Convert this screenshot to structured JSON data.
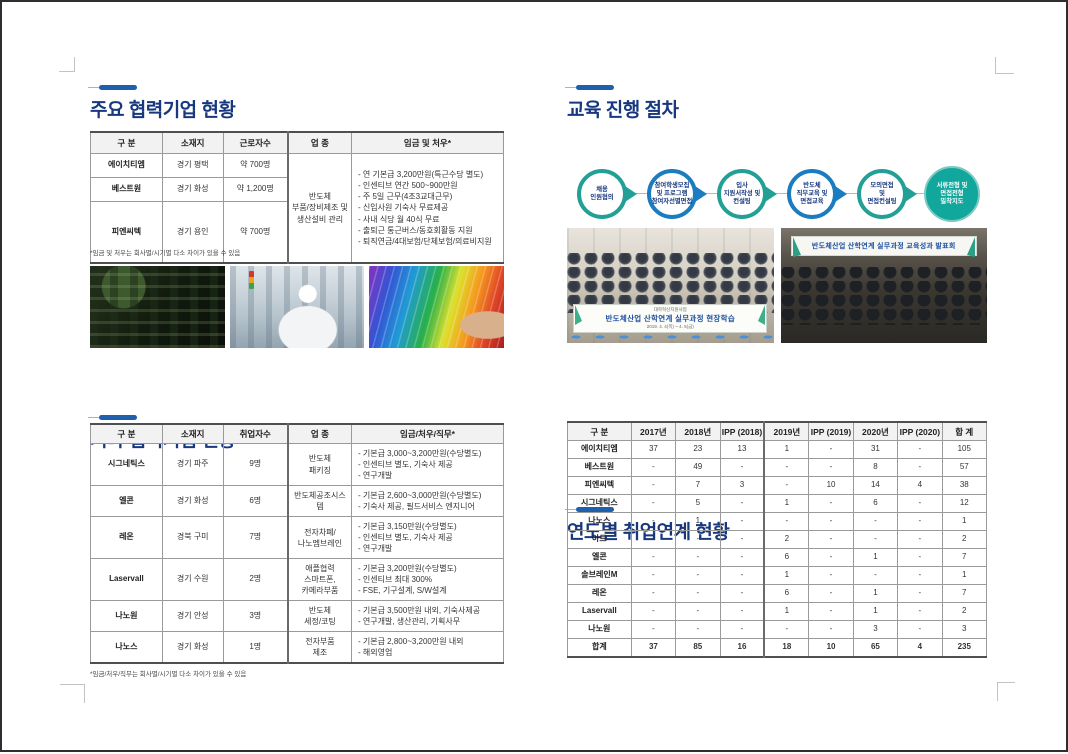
{
  "colors": {
    "title_navy": "#17387f",
    "accent_bar_blue": "#1e5fae",
    "diagram_teal": "#23a096",
    "diagram_blue": "#1b7cc0",
    "diagram_filled_teal": "#12a79d",
    "table_header_bg": "#f2f2f2"
  },
  "left": {
    "major": {
      "title": "주요 협력기업 현황",
      "headers": [
        "구 분",
        "소재지",
        "근로자수",
        "업 종",
        "임금 및 처우*"
      ],
      "rows": [
        {
          "name": "에이치티엠",
          "location": "경기 평택",
          "workers": "약 700명"
        },
        {
          "name": "베스트원",
          "location": "경기 화성",
          "workers": "약 1,200명"
        },
        {
          "name": "피엔씨텍",
          "location": "경기 용인",
          "workers": "약 700명"
        }
      ],
      "industry": [
        "반도체",
        "부품/장비제조 및",
        "생산설비 관리"
      ],
      "benefits": [
        "- 연 기본급 3,200만원(특근수당 별도)",
        "- 인센티브 연간 500~900만원",
        "- 주 5일 근무(4조3교대근무)",
        "- 신입사원 기숙사 무료제공",
        "- 사내 식당 월 40식 무료",
        "- 출퇴근 통근버스/동호회활동 지원",
        "- 퇴직연금/4대보험/단체보험/의료비지원"
      ],
      "footnote": "*임금 및 처우는 회사별/시기별 다소 차이가 있을 수 있음"
    },
    "photos": [
      "circuit-board",
      "cleanroom-worker",
      "rainbow-wafer"
    ],
    "other": {
      "title": "기타 협력기업 현황",
      "headers": [
        "구 분",
        "소재지",
        "취업자수",
        "업 종",
        "임금/처우/직무*"
      ],
      "rows": [
        {
          "name": "시그네틱스",
          "location": "경기 파주",
          "count": "9명",
          "industry": [
            "반도체",
            "패키징"
          ],
          "details": [
            "- 기본급 3,000~3,200만원(수당별도)",
            "- 인센티브 별도, 기숙사 제공",
            "- 연구개발"
          ]
        },
        {
          "name": "엘콘",
          "location": "경기 화성",
          "count": "6명",
          "industry": [
            "반도체공조시스템"
          ],
          "details": [
            "- 기본급 2,600~3,000만원(수당별도)",
            "- 기숙사 제공, 필드서비스 엔지니어"
          ]
        },
        {
          "name": "레온",
          "location": "경북 구미",
          "count": "7명",
          "industry": [
            "전자차폐/",
            "나노멤브레인"
          ],
          "details": [
            "- 기본급 3,150만원(수당별도)",
            "- 인센티브 별도, 기숙사 제공",
            "- 연구개발"
          ]
        },
        {
          "name": "Laservall",
          "location": "경기 수원",
          "count": "2명",
          "industry": [
            "애플협력",
            "스마트폰,",
            "카메라부품"
          ],
          "details": [
            "- 기본급 3,200만원(수당별도)",
            "- 인센티브 최대 300%",
            "- FSE, 기구설계, S/W설계"
          ]
        },
        {
          "name": "나노원",
          "location": "경기 안성",
          "count": "3명",
          "industry": [
            "반도체",
            "세정/코팅"
          ],
          "details": [
            "- 기본급 3,500만원 내외, 기숙사제공",
            "- 연구개발, 생산관리, 기획사무"
          ]
        },
        {
          "name": "나노스",
          "location": "경기 화성",
          "count": "1명",
          "industry": [
            "전자부품",
            "제조"
          ],
          "details": [
            "- 기본급 2,800~3,200만원 내외",
            "- 해외영업"
          ]
        }
      ],
      "footnote": "*임금/처우/직무는 회사별/시기별 다소 차이가 있을 수 있음"
    }
  },
  "right": {
    "process": {
      "title": "교육 진행 절차",
      "steps": [
        {
          "circle": [
            "채용",
            "인원협의"
          ],
          "label": [
            "해당업체",
            "진로취업처"
          ],
          "color": "teal",
          "filled": false
        },
        {
          "circle": [
            "참여학생모집",
            "및 프로그램",
            "참여자선별면접"
          ],
          "label": [
            "학과",
            "진로취업처"
          ],
          "color": "blue",
          "filled": false
        },
        {
          "circle": [
            "입사",
            "지원서작성 및",
            "컨설팅"
          ],
          "label": [
            "진로취업처",
            "대학일자리센터"
          ],
          "color": "teal",
          "filled": false
        },
        {
          "circle": [
            "반도체",
            "직무교육 및",
            "면접교육"
          ],
          "label": [
            "프로그램 책임교수"
          ],
          "color": "blue",
          "filled": false
        },
        {
          "circle": [
            "모의면접",
            "및",
            "면접컨설팅"
          ],
          "label": [
            "진로취업처",
            "대학일자리센터"
          ],
          "color": "teal",
          "filled": false
        },
        {
          "circle": [
            "서류전형 및",
            "면접전형",
            "밀착지도"
          ],
          "label": [
            "진로취업처",
            "프로그램 책임교수"
          ],
          "color": "teal",
          "filled": true
        }
      ]
    },
    "photos": {
      "field_trip": {
        "banner_top": "대학혁신지원사업",
        "banner_main": "반도체산업 산학연계 실무과정 현장학습",
        "banner_date": "2019. 4. 4(목) ~ 4. 5(금)"
      },
      "presentation": {
        "banner_main": "반도체산업 산학연계 실무과정 교육성과 발표회"
      }
    },
    "yearly": {
      "title": "연도별 취업연계 현황",
      "headers": [
        "구 분",
        "2017년",
        "2018년",
        "IPP (2018)",
        "2019년",
        "IPP (2019)",
        "2020년",
        "IPP (2020)",
        "합 계"
      ],
      "rows": [
        {
          "name": "에이치티엠",
          "values": [
            "37",
            "23",
            "13",
            "1",
            "-",
            "31",
            "-",
            "105"
          ]
        },
        {
          "name": "베스트원",
          "values": [
            "-",
            "49",
            "-",
            "-",
            "-",
            "8",
            "-",
            "57"
          ]
        },
        {
          "name": "피엔씨텍",
          "values": [
            "-",
            "7",
            "3",
            "-",
            "10",
            "14",
            "4",
            "38"
          ]
        },
        {
          "name": "시그네틱스",
          "values": [
            "-",
            "5",
            "-",
            "1",
            "-",
            "6",
            "-",
            "12"
          ]
        },
        {
          "name": "나노스",
          "values": [
            "-",
            "1",
            "-",
            "-",
            "-",
            "-",
            "-",
            "1"
          ]
        },
        {
          "name": "아트",
          "values": [
            "-",
            "-",
            "-",
            "2",
            "-",
            "-",
            "-",
            "2"
          ]
        },
        {
          "name": "엘콘",
          "values": [
            "-",
            "-",
            "-",
            "6",
            "-",
            "1",
            "-",
            "7"
          ]
        },
        {
          "name": "솔브레인M",
          "values": [
            "-",
            "-",
            "-",
            "1",
            "-",
            "-",
            "-",
            "1"
          ]
        },
        {
          "name": "레온",
          "values": [
            "-",
            "-",
            "-",
            "6",
            "-",
            "1",
            "-",
            "7"
          ]
        },
        {
          "name": "Laservall",
          "values": [
            "-",
            "-",
            "-",
            "1",
            "-",
            "1",
            "-",
            "2"
          ]
        },
        {
          "name": "나노원",
          "values": [
            "-",
            "-",
            "-",
            "-",
            "-",
            "3",
            "-",
            "3"
          ]
        },
        {
          "name": "합계",
          "values": [
            "37",
            "85",
            "16",
            "18",
            "10",
            "65",
            "4",
            "235"
          ],
          "total": true
        }
      ]
    }
  }
}
